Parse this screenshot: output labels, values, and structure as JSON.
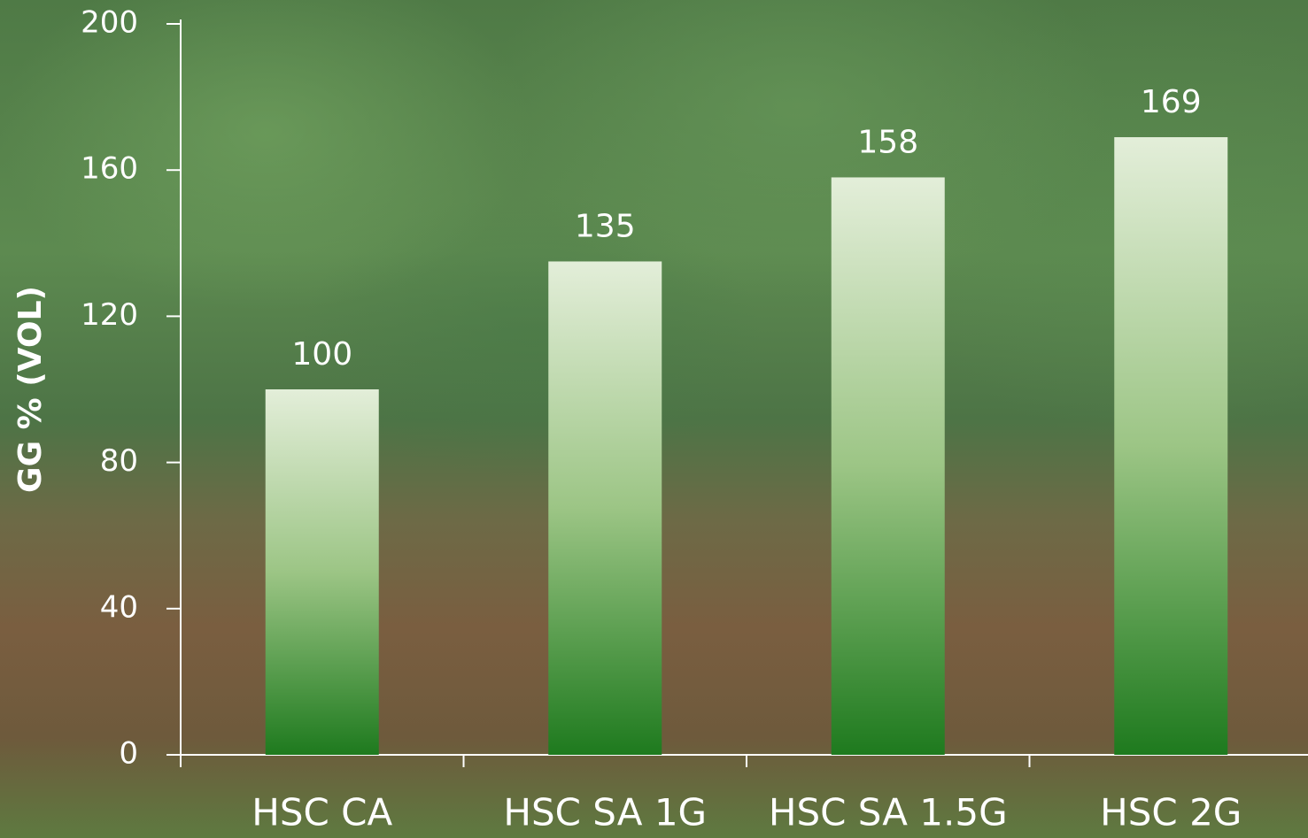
{
  "chart_data": {
    "type": "bar",
    "y_label": "GG % (VOL)",
    "categories": [
      "HSC CA",
      "HSC SA 1G",
      "HSC SA 1.5G",
      "HSC 2G"
    ],
    "values": [
      100,
      135,
      158,
      169
    ],
    "color": "#1e7a1e",
    "ylim": [
      0,
      200
    ],
    "yticks": [
      0,
      40,
      80,
      120,
      160,
      200
    ]
  }
}
